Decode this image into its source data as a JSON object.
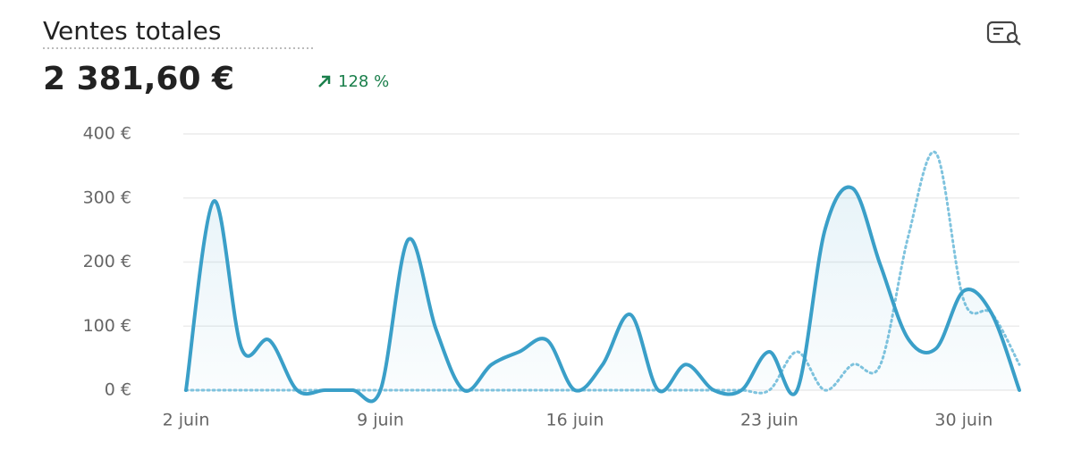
{
  "chart_data": {
    "type": "line",
    "title": "Ventes totales",
    "subtitle": "2 381,60 €",
    "annotations": [
      "128 %"
    ],
    "categories": [
      "2 juin",
      null,
      null,
      null,
      null,
      null,
      null,
      "9 juin",
      null,
      null,
      null,
      null,
      null,
      null,
      "16 juin",
      null,
      null,
      null,
      null,
      null,
      null,
      "23 juin",
      null,
      null,
      null,
      null,
      null,
      null,
      "30 juin",
      null,
      null
    ],
    "series": [
      {
        "color": "#3a9fc8",
        "style": "solid",
        "values": [
          0,
          295,
          65,
          78,
          0,
          0,
          0,
          0,
          235,
          95,
          0,
          40,
          60,
          78,
          0,
          40,
          118,
          0,
          40,
          0,
          0,
          60,
          0,
          250,
          315,
          195,
          80,
          65,
          155,
          120,
          0
        ]
      },
      {
        "color": "#7fc3de",
        "style": "dotted",
        "values": [
          0,
          0,
          0,
          0,
          0,
          0,
          0,
          0,
          0,
          0,
          0,
          0,
          0,
          0,
          0,
          0,
          0,
          0,
          0,
          0,
          0,
          0,
          60,
          0,
          40,
          40,
          240,
          370,
          140,
          120,
          40
        ]
      }
    ],
    "ylim": [
      0,
      400
    ],
    "yticks": [
      {
        "value": 0,
        "label": "0 €"
      },
      {
        "value": 100,
        "label": "100 €"
      },
      {
        "value": 200,
        "label": "200 €"
      },
      {
        "value": 300,
        "label": "300 €"
      },
      {
        "value": 400,
        "label": "400 €"
      }
    ],
    "grid": true
  }
}
